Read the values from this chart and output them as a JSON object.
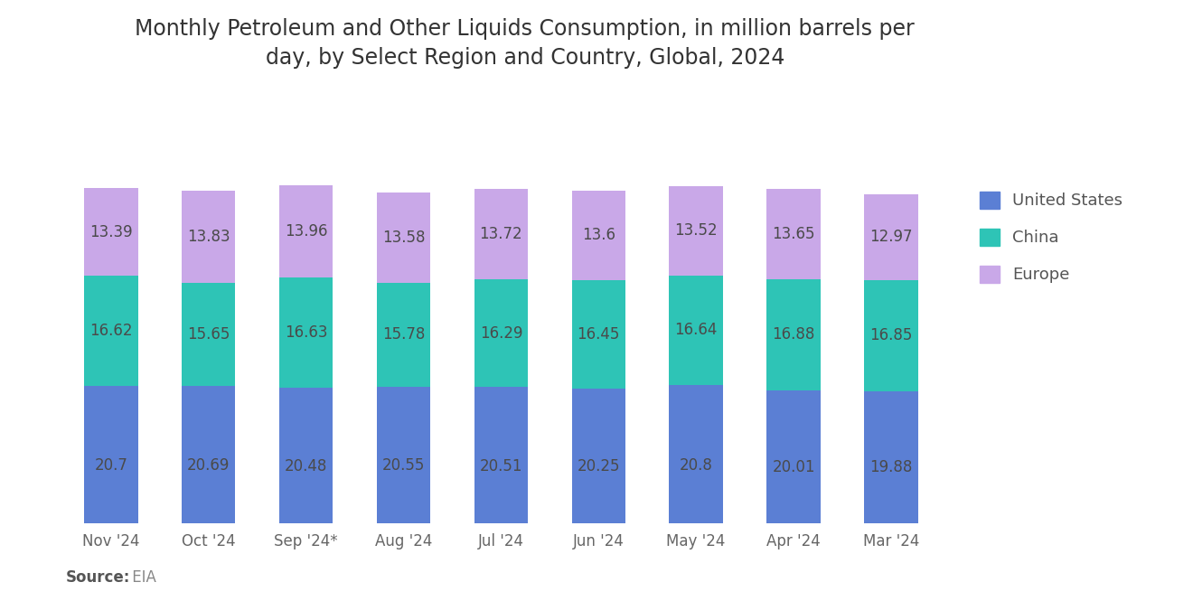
{
  "title_line1": "Monthly Petroleum and Other Liquids Consumption, in million barrels per",
  "title_line2": "day, by Select Region and Country, Global, 2024",
  "categories": [
    "Nov '24",
    "Oct '24",
    "Sep '24*",
    "Aug '24",
    "Jul '24",
    "Jun '24",
    "May '24",
    "Apr '24",
    "Mar '24"
  ],
  "united_states": [
    20.7,
    20.69,
    20.48,
    20.55,
    20.51,
    20.25,
    20.8,
    20.01,
    19.88
  ],
  "china": [
    16.62,
    15.65,
    16.63,
    15.78,
    16.29,
    16.45,
    16.64,
    16.88,
    16.85
  ],
  "europe": [
    13.39,
    13.83,
    13.96,
    13.58,
    13.72,
    13.6,
    13.52,
    13.65,
    12.97
  ],
  "us_color": "#5B7FD4",
  "china_color": "#2EC4B6",
  "europe_color": "#C9A8E8",
  "background_color": "#FFFFFF",
  "title_fontsize": 17,
  "label_fontsize": 12,
  "tick_fontsize": 12,
  "legend_fontsize": 13,
  "bar_width": 0.55
}
